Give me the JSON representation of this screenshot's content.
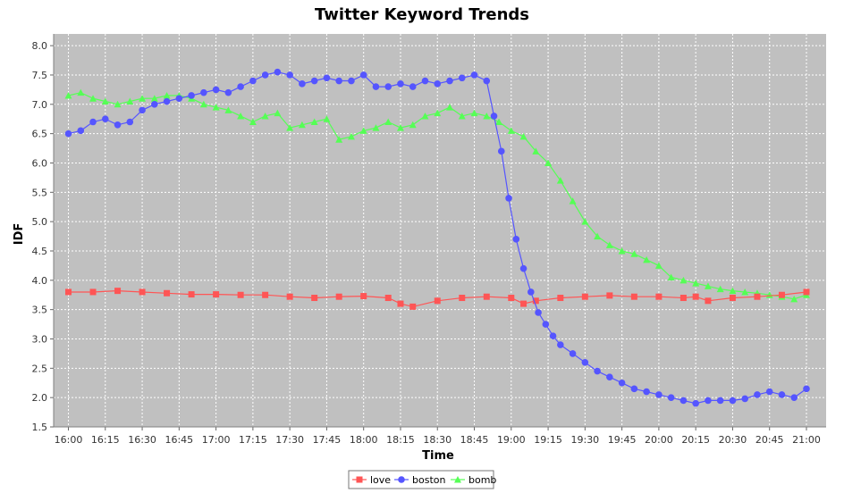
{
  "chart_data": {
    "type": "line",
    "title": "Twitter Keyword Trends",
    "xlabel": "Time",
    "ylabel": "IDF",
    "ylim": [
      1.5,
      8.2
    ],
    "xlim_minutes": [
      -6,
      308
    ],
    "x_ticks": [
      "16:00",
      "16:15",
      "16:30",
      "16:45",
      "17:00",
      "17:15",
      "17:30",
      "17:45",
      "18:00",
      "18:15",
      "18:30",
      "18:45",
      "19:00",
      "19:15",
      "19:30",
      "19:45",
      "20:00",
      "20:15",
      "20:30",
      "20:45",
      "21:00"
    ],
    "y_ticks": [
      "1.5",
      "2.0",
      "2.5",
      "3.0",
      "3.5",
      "4.0",
      "4.5",
      "5.0",
      "5.5",
      "6.0",
      "6.5",
      "7.0",
      "7.5",
      "8.0"
    ],
    "grid": true,
    "legend_position": "bottom-center",
    "background": "#c0c0c0",
    "series": [
      {
        "name": "love",
        "color": "#ff5555",
        "marker": "square",
        "x": [
          "16:00",
          "16:10",
          "16:20",
          "16:30",
          "16:40",
          "16:50",
          "17:00",
          "17:10",
          "17:20",
          "17:30",
          "17:40",
          "17:50",
          "18:00",
          "18:10",
          "18:15",
          "18:20",
          "18:30",
          "18:40",
          "18:50",
          "19:00",
          "19:05",
          "19:10",
          "19:20",
          "19:30",
          "19:40",
          "19:50",
          "20:00",
          "20:10",
          "20:15",
          "20:20",
          "20:30",
          "20:40",
          "20:50",
          "21:00"
        ],
        "values": [
          3.8,
          3.8,
          3.82,
          3.8,
          3.78,
          3.76,
          3.76,
          3.75,
          3.75,
          3.72,
          3.7,
          3.72,
          3.73,
          3.7,
          3.6,
          3.55,
          3.65,
          3.7,
          3.72,
          3.7,
          3.6,
          3.65,
          3.7,
          3.72,
          3.74,
          3.72,
          3.72,
          3.7,
          3.72,
          3.65,
          3.7,
          3.72,
          3.75,
          3.8
        ]
      },
      {
        "name": "boston",
        "color": "#5555ff",
        "marker": "circle",
        "x": [
          "16:00",
          "16:05",
          "16:10",
          "16:15",
          "16:20",
          "16:25",
          "16:30",
          "16:35",
          "16:40",
          "16:45",
          "16:50",
          "16:55",
          "17:00",
          "17:05",
          "17:10",
          "17:15",
          "17:20",
          "17:25",
          "17:30",
          "17:35",
          "17:40",
          "17:45",
          "17:50",
          "17:55",
          "18:00",
          "18:05",
          "18:10",
          "18:15",
          "18:20",
          "18:25",
          "18:30",
          "18:35",
          "18:40",
          "18:45",
          "18:50",
          "18:53",
          "18:56",
          "18:59",
          "19:02",
          "19:05",
          "19:08",
          "19:11",
          "19:14",
          "19:17",
          "19:20",
          "19:25",
          "19:30",
          "19:35",
          "19:40",
          "19:45",
          "19:50",
          "19:55",
          "20:00",
          "20:05",
          "20:10",
          "20:15",
          "20:20",
          "20:25",
          "20:30",
          "20:35",
          "20:40",
          "20:45",
          "20:50",
          "20:55",
          "21:00"
        ],
        "values": [
          6.5,
          6.55,
          6.7,
          6.75,
          6.65,
          6.7,
          6.9,
          7.0,
          7.05,
          7.1,
          7.15,
          7.2,
          7.25,
          7.2,
          7.3,
          7.4,
          7.5,
          7.55,
          7.5,
          7.35,
          7.4,
          7.45,
          7.4,
          7.4,
          7.5,
          7.3,
          7.3,
          7.35,
          7.3,
          7.4,
          7.35,
          7.4,
          7.45,
          7.5,
          7.4,
          6.8,
          6.2,
          5.4,
          4.7,
          4.2,
          3.8,
          3.45,
          3.25,
          3.05,
          2.9,
          2.75,
          2.6,
          2.45,
          2.35,
          2.25,
          2.15,
          2.1,
          2.05,
          2.0,
          1.95,
          1.9,
          1.95,
          1.95,
          1.95,
          1.98,
          2.05,
          2.1,
          2.05,
          2.0,
          2.15
        ]
      },
      {
        "name": "bomb",
        "color": "#55ff55",
        "marker": "triangle",
        "x": [
          "16:00",
          "16:05",
          "16:10",
          "16:15",
          "16:20",
          "16:25",
          "16:30",
          "16:35",
          "16:40",
          "16:45",
          "16:50",
          "16:55",
          "17:00",
          "17:05",
          "17:10",
          "17:15",
          "17:20",
          "17:25",
          "17:30",
          "17:35",
          "17:40",
          "17:45",
          "17:50",
          "17:55",
          "18:00",
          "18:05",
          "18:10",
          "18:15",
          "18:20",
          "18:25",
          "18:30",
          "18:35",
          "18:40",
          "18:45",
          "18:50",
          "18:55",
          "19:00",
          "19:05",
          "19:10",
          "19:15",
          "19:20",
          "19:25",
          "19:30",
          "19:35",
          "19:40",
          "19:45",
          "19:50",
          "19:55",
          "20:00",
          "20:05",
          "20:10",
          "20:15",
          "20:20",
          "20:25",
          "20:30",
          "20:35",
          "20:40",
          "20:45",
          "20:50",
          "20:55",
          "21:00"
        ],
        "values": [
          7.15,
          7.2,
          7.1,
          7.05,
          7.0,
          7.05,
          7.1,
          7.1,
          7.15,
          7.15,
          7.1,
          7.0,
          6.95,
          6.9,
          6.8,
          6.7,
          6.8,
          6.85,
          6.6,
          6.65,
          6.7,
          6.75,
          6.4,
          6.45,
          6.55,
          6.6,
          6.7,
          6.6,
          6.65,
          6.8,
          6.85,
          6.95,
          6.8,
          6.85,
          6.8,
          6.7,
          6.55,
          6.45,
          6.2,
          6.0,
          5.7,
          5.35,
          5.0,
          4.75,
          4.6,
          4.5,
          4.45,
          4.35,
          4.25,
          4.05,
          4.0,
          3.95,
          3.9,
          3.85,
          3.82,
          3.8,
          3.78,
          3.75,
          3.72,
          3.68,
          3.75
        ]
      }
    ]
  }
}
